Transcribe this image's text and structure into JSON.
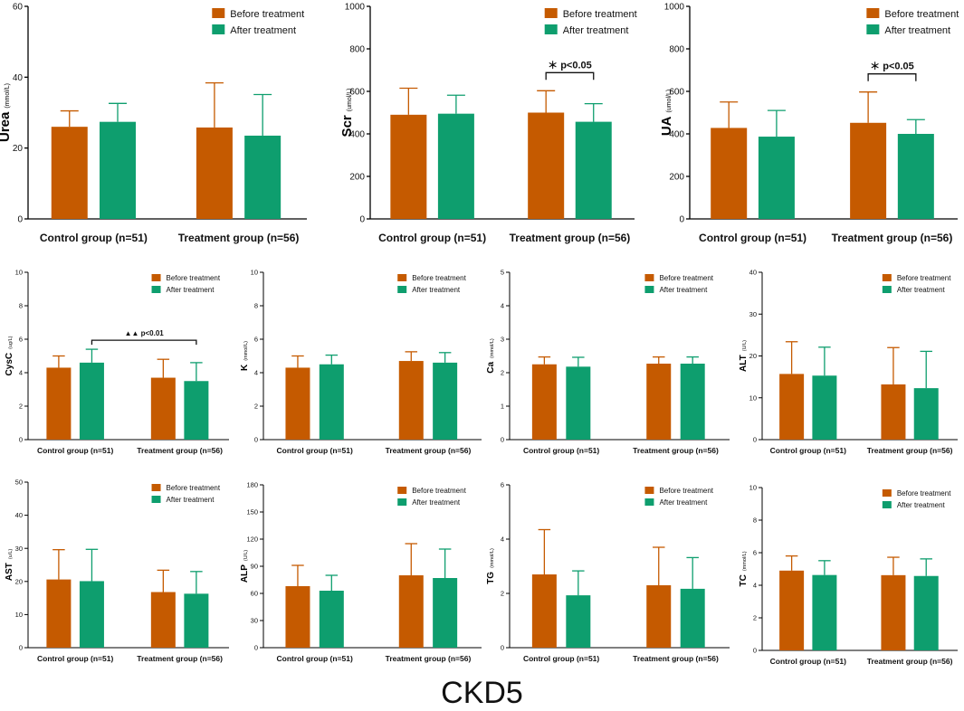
{
  "figure_title": "CKD5",
  "colors": {
    "before": "#C55A00",
    "after": "#0E9E6E",
    "axis": "#000000"
  },
  "legend": {
    "before": "Before treatment",
    "after": "After treatment"
  },
  "chart_data": [
    {
      "type": "bar",
      "ylabel": "Urea",
      "unit": "(mmol/L)",
      "ylim": [
        0,
        60
      ],
      "yticks": [
        0,
        20,
        40,
        60
      ],
      "categories": [
        "Control group (n=51)",
        "Treatment group (n=56)"
      ],
      "series": [
        {
          "name": "Before treatment",
          "values": [
            26.0,
            25.8
          ],
          "errors": [
            4.5,
            12.6
          ]
        },
        {
          "name": "After treatment",
          "values": [
            27.4,
            23.5
          ],
          "errors": [
            5.2,
            11.6
          ]
        }
      ]
    },
    {
      "type": "bar",
      "ylabel": "Scr",
      "unit": "(umol/L)",
      "ylim": [
        0,
        1000
      ],
      "yticks": [
        0,
        200,
        400,
        600,
        800,
        1000
      ],
      "categories": [
        "Control group (n=51)",
        "Treatment group (n=56)"
      ],
      "series": [
        {
          "name": "Before treatment",
          "values": [
            490,
            500
          ],
          "errors": [
            125,
            103
          ]
        },
        {
          "name": "After treatment",
          "values": [
            495,
            457
          ],
          "errors": [
            87,
            85
          ]
        }
      ],
      "annotation": {
        "text": "＊ p<0.05",
        "group": 1
      }
    },
    {
      "type": "bar",
      "ylabel": "UA",
      "unit": "(umol/L)",
      "ylim": [
        0,
        1000
      ],
      "yticks": [
        0,
        200,
        400,
        600,
        800,
        1000
      ],
      "categories": [
        "Control group (n=51)",
        "Treatment group (n=56)"
      ],
      "series": [
        {
          "name": "Before treatment",
          "values": [
            428,
            452
          ],
          "errors": [
            122,
            145
          ]
        },
        {
          "name": "After treatment",
          "values": [
            387,
            400
          ],
          "errors": [
            123,
            67
          ]
        }
      ],
      "annotation": {
        "text": "＊ p<0.05",
        "group": 1
      }
    },
    {
      "type": "bar",
      "ylabel": "CysC",
      "unit": "(ug/L)",
      "ylim": [
        0,
        10
      ],
      "yticks": [
        0,
        2,
        4,
        6,
        8,
        10
      ],
      "categories": [
        "Control group (n=51)",
        "Treatment group (n=56)"
      ],
      "series": [
        {
          "name": "Before treatment",
          "values": [
            4.3,
            3.7
          ],
          "errors": [
            0.7,
            1.1
          ]
        },
        {
          "name": "After treatment",
          "values": [
            4.6,
            3.5
          ],
          "errors": [
            0.8,
            1.1
          ]
        }
      ],
      "annotation": {
        "text": "▲▲ p<0.01",
        "cross": true
      }
    },
    {
      "type": "bar",
      "ylabel": "K",
      "unit": "(mmol/L)",
      "ylim": [
        0,
        10
      ],
      "yticks": [
        0,
        2,
        4,
        6,
        8,
        10
      ],
      "categories": [
        "Control group (n=51)",
        "Treatment group (n=56)"
      ],
      "series": [
        {
          "name": "Before treatment",
          "values": [
            4.3,
            4.7
          ],
          "errors": [
            0.7,
            0.55
          ]
        },
        {
          "name": "After treatment",
          "values": [
            4.5,
            4.6
          ],
          "errors": [
            0.55,
            0.6
          ]
        }
      ]
    },
    {
      "type": "bar",
      "ylabel": "Ca",
      "unit": "(mmol/L)",
      "ylim": [
        0,
        5
      ],
      "yticks": [
        0,
        1,
        2,
        3,
        4,
        5
      ],
      "categories": [
        "Control group (n=51)",
        "Treatment group (n=56)"
      ],
      "series": [
        {
          "name": "Before treatment",
          "values": [
            2.25,
            2.27
          ],
          "errors": [
            0.22,
            0.2
          ]
        },
        {
          "name": "After treatment",
          "values": [
            2.18,
            2.27
          ],
          "errors": [
            0.28,
            0.2
          ]
        }
      ]
    },
    {
      "type": "bar",
      "ylabel": "ALT",
      "unit": "(U/L)",
      "ylim": [
        0,
        40
      ],
      "yticks": [
        0,
        10,
        20,
        30,
        40
      ],
      "categories": [
        "Control group (n=51)",
        "Treatment group (n=56)"
      ],
      "series": [
        {
          "name": "Before treatment",
          "values": [
            15.7,
            13.2
          ],
          "errors": [
            7.7,
            8.8
          ]
        },
        {
          "name": "After treatment",
          "values": [
            15.3,
            12.3
          ],
          "errors": [
            6.8,
            8.8
          ]
        }
      ]
    },
    {
      "type": "bar",
      "ylabel": "AST",
      "unit": "(u/L)",
      "ylim": [
        0,
        50
      ],
      "yticks": [
        0,
        10,
        20,
        30,
        40,
        50
      ],
      "categories": [
        "Control group (n=51)",
        "Treatment group (n=56)"
      ],
      "series": [
        {
          "name": "Before treatment",
          "values": [
            20.6,
            16.8
          ],
          "errors": [
            9.0,
            6.6
          ]
        },
        {
          "name": "After treatment",
          "values": [
            20.1,
            16.3
          ],
          "errors": [
            9.6,
            6.7
          ]
        }
      ]
    },
    {
      "type": "bar",
      "ylabel": "ALP",
      "unit": "(U/L)",
      "ylim": [
        0,
        180
      ],
      "yticks": [
        0,
        30,
        60,
        90,
        120,
        150,
        180
      ],
      "categories": [
        "Control group (n=51)",
        "Treatment group (n=56)"
      ],
      "series": [
        {
          "name": "Before treatment",
          "values": [
            68,
            80
          ],
          "errors": [
            23,
            35
          ]
        },
        {
          "name": "After treatment",
          "values": [
            63,
            77
          ],
          "errors": [
            17,
            32
          ]
        }
      ]
    },
    {
      "type": "bar",
      "ylabel": "TG",
      "unit": "(mmol/L)",
      "ylim": [
        0,
        6
      ],
      "yticks": [
        0,
        2,
        4,
        6
      ],
      "categories": [
        "Control group (n=51)",
        "Treatment group (n=56)"
      ],
      "series": [
        {
          "name": "Before treatment",
          "values": [
            2.7,
            2.3
          ],
          "errors": [
            1.65,
            1.4
          ]
        },
        {
          "name": "After treatment",
          "values": [
            1.93,
            2.17
          ],
          "errors": [
            0.9,
            1.15
          ]
        }
      ]
    },
    {
      "type": "bar",
      "ylabel": "TC",
      "unit": "(mmol/L)",
      "ylim": [
        0,
        10
      ],
      "yticks": [
        0,
        2,
        4,
        6,
        8,
        10
      ],
      "categories": [
        "Control group (n=51)",
        "Treatment group (n=56)"
      ],
      "series": [
        {
          "name": "Before treatment",
          "values": [
            4.9,
            4.62
          ],
          "errors": [
            0.9,
            1.1
          ]
        },
        {
          "name": "After treatment",
          "values": [
            4.63,
            4.57
          ],
          "errors": [
            0.88,
            1.05
          ]
        }
      ]
    }
  ]
}
